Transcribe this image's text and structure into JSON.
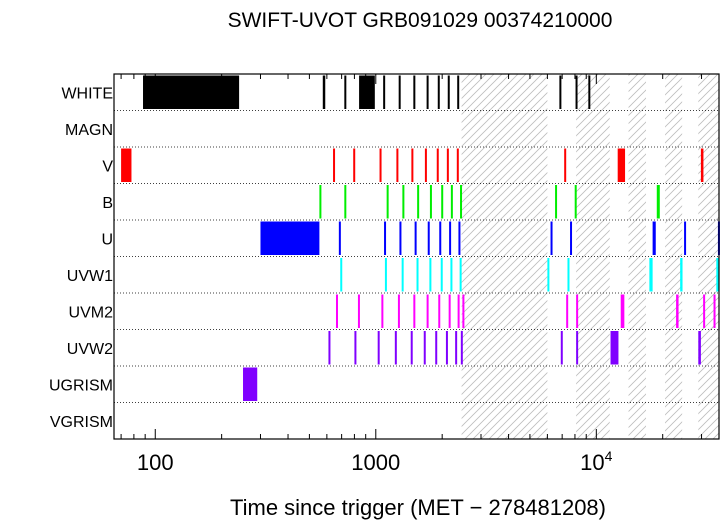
{
  "chart_data": {
    "type": "timeline",
    "title": "SWIFT-UVOT GRB091029 00374210000",
    "xlabel": "Time since trigger (MET − 278481208)",
    "x_scale": "log",
    "xlim": [
      65,
      36000
    ],
    "x_ticks": [
      {
        "value": 100,
        "label": "100"
      },
      {
        "value": 1000,
        "label": "1000"
      },
      {
        "value": 10000,
        "label": "10",
        "exp": "4"
      }
    ],
    "filters": [
      "WHITE",
      "MAGN",
      "V",
      "B",
      "U",
      "UVW1",
      "UVM2",
      "UVW2",
      "UGRISM",
      "VGRISM"
    ],
    "colors": {
      "WHITE": "#000000",
      "MAGN": "#000000",
      "V": "#ff0000",
      "B": "#00ee00",
      "U": "#0000ff",
      "UVW1": "#00ffff",
      "UVM2": "#ff00ff",
      "UVW2": "#8000ff",
      "UGRISM": "#8000ff",
      "VGRISM": "#000000"
    },
    "gap_intervals": [
      [
        2450,
        6000
      ],
      [
        8100,
        11500
      ],
      [
        14000,
        16800
      ],
      [
        20500,
        24500
      ],
      [
        29000,
        36000
      ]
    ],
    "exposures": {
      "WHITE": [
        [
          88,
          240
        ],
        [
          575,
          590
        ],
        [
          720,
          735
        ],
        [
          840,
          990
        ],
        [
          1080,
          1095
        ],
        [
          1270,
          1285
        ],
        [
          1480,
          1495
        ],
        [
          1700,
          1715
        ],
        [
          1910,
          1925
        ],
        [
          2120,
          2135
        ],
        [
          2340,
          2355
        ],
        [
          6800,
          6840
        ],
        [
          8050,
          8200
        ],
        [
          9200,
          9250
        ]
      ],
      "MAGN": [],
      "V": [
        [
          70,
          78
        ],
        [
          640,
          650
        ],
        [
          790,
          800
        ],
        [
          1040,
          1050
        ],
        [
          1240,
          1250
        ],
        [
          1450,
          1460
        ],
        [
          1670,
          1680
        ],
        [
          1890,
          1900
        ],
        [
          2100,
          2110
        ],
        [
          2330,
          2340
        ],
        [
          7150,
          7260
        ],
        [
          12500,
          13500
        ],
        [
          29800,
          30600
        ]
      ],
      "B": [
        [
          555,
          565
        ],
        [
          720,
          730
        ],
        [
          1120,
          1130
        ],
        [
          1320,
          1330
        ],
        [
          1540,
          1550
        ],
        [
          1760,
          1770
        ],
        [
          1980,
          1990
        ],
        [
          2190,
          2200
        ],
        [
          2410,
          2420
        ],
        [
          6500,
          6620
        ],
        [
          7980,
          8100
        ],
        [
          18800,
          19400
        ]
      ],
      "U": [
        [
          300,
          555
        ],
        [
          680,
          690
        ],
        [
          1090,
          1100
        ],
        [
          1280,
          1290
        ],
        [
          1500,
          1510
        ],
        [
          1720,
          1730
        ],
        [
          1940,
          1950
        ],
        [
          2150,
          2160
        ],
        [
          2370,
          2380
        ],
        [
          6200,
          6320
        ],
        [
          7600,
          7720
        ],
        [
          18000,
          18600
        ],
        [
          25000,
          25500
        ],
        [
          35600,
          36000
        ]
      ],
      "UVW1": [
        [
          690,
          700
        ],
        [
          1100,
          1110
        ],
        [
          1310,
          1320
        ],
        [
          1530,
          1540
        ],
        [
          1750,
          1760
        ],
        [
          1970,
          1980
        ],
        [
          2180,
          2190
        ],
        [
          2400,
          2410
        ],
        [
          6000,
          6110
        ],
        [
          7400,
          7510
        ],
        [
          17400,
          18000
        ],
        [
          24000,
          24600
        ],
        [
          35000,
          36000
        ]
      ],
      "UVM2": [
        [
          660,
          670
        ],
        [
          830,
          840
        ],
        [
          1060,
          1070
        ],
        [
          1260,
          1270
        ],
        [
          1480,
          1490
        ],
        [
          1700,
          1710
        ],
        [
          1920,
          1930
        ],
        [
          2140,
          2150
        ],
        [
          2350,
          2360
        ],
        [
          2470,
          2480
        ],
        [
          7300,
          7410
        ],
        [
          8100,
          8130
        ],
        [
          12900,
          13400
        ],
        [
          23000,
          23600
        ],
        [
          30500,
          31000
        ],
        [
          34000,
          34500
        ]
      ],
      "UVW2": [
        [
          610,
          620
        ],
        [
          800,
          810
        ],
        [
          1020,
          1030
        ],
        [
          1220,
          1230
        ],
        [
          1440,
          1450
        ],
        [
          1650,
          1660
        ],
        [
          1860,
          1870
        ],
        [
          2080,
          2090
        ],
        [
          2290,
          2300
        ],
        [
          2430,
          2440
        ],
        [
          6900,
          7020
        ],
        [
          8100,
          8120
        ],
        [
          11600,
          12600
        ],
        [
          29000,
          29800
        ]
      ],
      "UGRISM": [
        [
          250,
          290
        ]
      ],
      "VGRISM": []
    }
  }
}
